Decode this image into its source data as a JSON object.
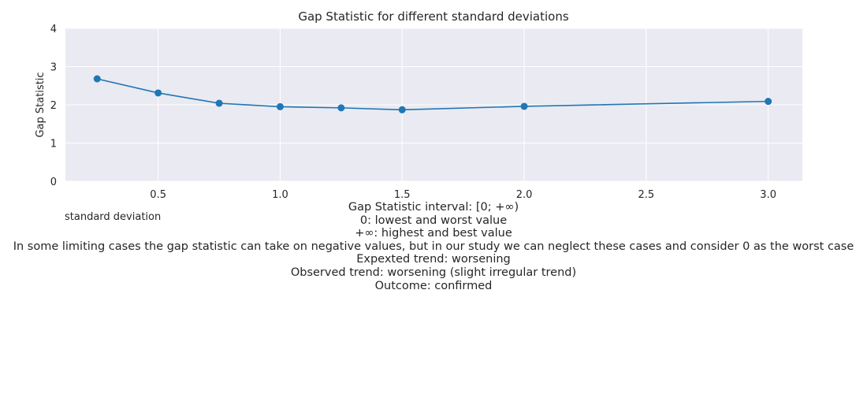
{
  "chart_data": {
    "type": "line",
    "title": "Gap Statistic for different standard deviations",
    "xlabel": "standard deviation",
    "ylabel": "Gap Statistic",
    "x": [
      0.25,
      0.5,
      0.75,
      1.0,
      1.25,
      1.5,
      2.0,
      3.0
    ],
    "series": [
      {
        "name": "Gap Statistic",
        "values": [
          2.68,
          2.31,
          2.04,
          1.95,
          1.92,
          1.87,
          1.96,
          2.09
        ]
      }
    ],
    "xlim": [
      0.12,
      3.14
    ],
    "ylim": [
      0,
      4
    ],
    "xticks": [
      "0.5",
      "1.0",
      "1.5",
      "2.0",
      "2.5",
      "3.0"
    ],
    "yticks": [
      "0",
      "1",
      "2",
      "3",
      "4"
    ],
    "grid": true,
    "line_color": "#1f77b4",
    "background_color": "#eaeaf2"
  },
  "caption": {
    "lines": [
      "Gap Statistic interval: [0; +∞)",
      "0: lowest and worst value",
      "+∞: highest and best value",
      "In some limiting cases the gap statistic can take on negative values, but in our study we can neglect these cases and consider 0 as the worst case",
      "Expexted trend: worsening",
      "Observed trend: worsening (slight irregular trend)",
      "Outcome: confirmed"
    ]
  }
}
